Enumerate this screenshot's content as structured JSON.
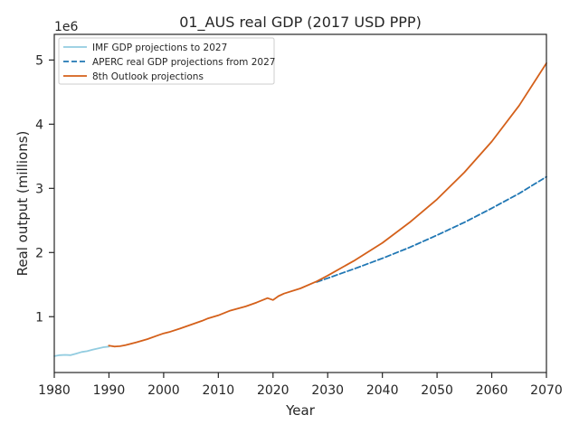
{
  "chart_data": {
    "type": "line",
    "title": "01_AUS real GDP (2017 USD PPP)",
    "xlabel": "Year",
    "ylabel": "Real output (millions)",
    "y_offset_text": "1e6",
    "xlim": [
      1980,
      2070
    ],
    "ylim": [
      130000,
      5400000
    ],
    "x_ticks": [
      1980,
      1990,
      2000,
      2010,
      2020,
      2030,
      2040,
      2050,
      2060,
      2070
    ],
    "y_ticks": [
      {
        "value": 1000000,
        "label": "1"
      },
      {
        "value": 2000000,
        "label": "2"
      },
      {
        "value": 3000000,
        "label": "3"
      },
      {
        "value": 4000000,
        "label": "4"
      },
      {
        "value": 5000000,
        "label": "5"
      }
    ],
    "grid": false,
    "legend_position": "top-left",
    "series": [
      {
        "name": "IMF GDP projections to 2027",
        "color": "#92cce0",
        "dash": "solid",
        "x": [
          1980,
          1981,
          1982,
          1983,
          1984,
          1985,
          1986,
          1987,
          1988,
          1989,
          1990
        ],
        "y": [
          385000,
          400000,
          405000,
          400000,
          425000,
          450000,
          462000,
          485000,
          505000,
          525000,
          535000
        ]
      },
      {
        "name": "APERC real GDP projections from 2027",
        "color": "#2077b4",
        "dash": "dashed",
        "x": [
          2028,
          2030,
          2035,
          2040,
          2045,
          2050,
          2055,
          2060,
          2065,
          2070
        ],
        "y": [
          1540000,
          1600000,
          1750000,
          1910000,
          2080000,
          2270000,
          2470000,
          2690000,
          2920000,
          3180000
        ]
      },
      {
        "name": "8th Outlook projections",
        "color": "#d4601a",
        "dash": "solid",
        "x": [
          1990,
          1991,
          1992,
          1993,
          1995,
          1997,
          1999,
          2000,
          2001,
          2003,
          2005,
          2007,
          2008,
          2010,
          2012,
          2015,
          2017,
          2019,
          2020,
          2021,
          2022,
          2025,
          2028,
          2030,
          2035,
          2040,
          2045,
          2050,
          2055,
          2060,
          2065,
          2070
        ],
        "y": [
          550000,
          535000,
          540000,
          555000,
          600000,
          650000,
          710000,
          740000,
          760000,
          815000,
          875000,
          935000,
          970000,
          1020000,
          1090000,
          1160000,
          1220000,
          1290000,
          1260000,
          1320000,
          1360000,
          1440000,
          1550000,
          1640000,
          1880000,
          2150000,
          2470000,
          2830000,
          3250000,
          3730000,
          4290000,
          4950000
        ]
      }
    ]
  }
}
